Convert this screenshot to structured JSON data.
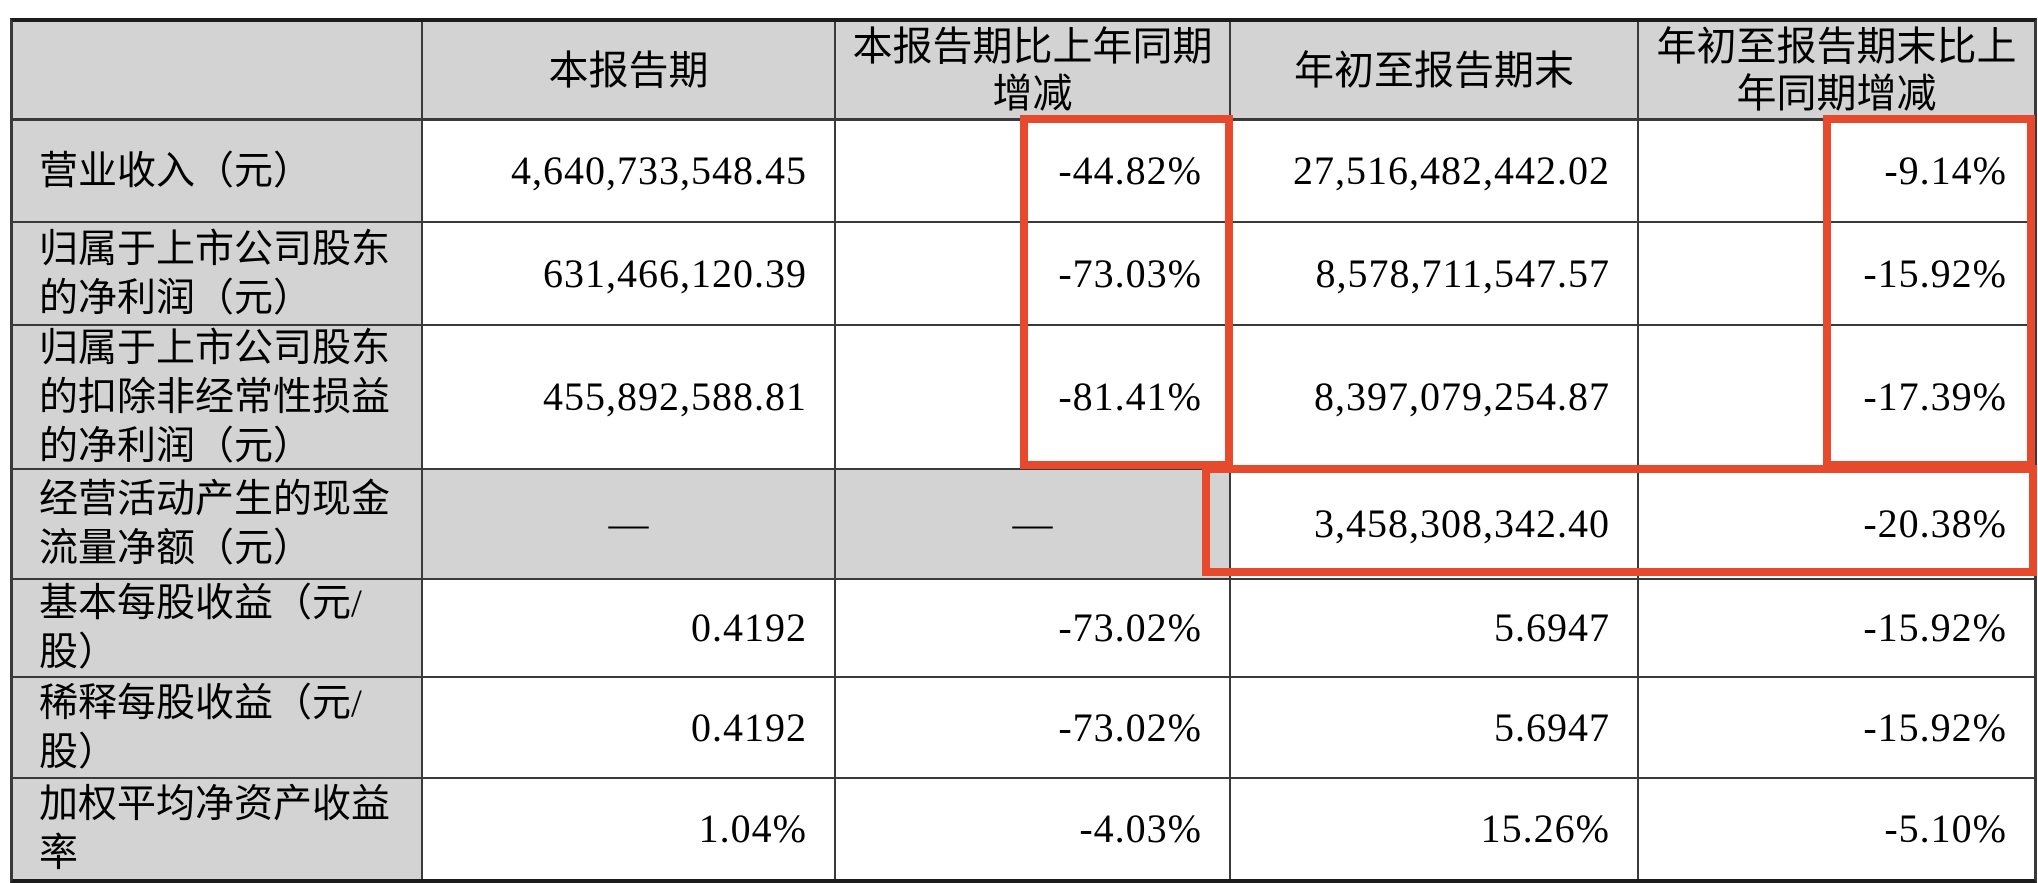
{
  "table": {
    "columns": [
      "",
      "本报告期",
      "本报告期比上年同期增减",
      "年初至报告期末",
      "年初至报告期末比上年同期增减"
    ],
    "rows": [
      {
        "label": "营业收入（元）",
        "values": [
          "4,640,733,548.45",
          "-44.82%",
          "27,516,482,442.02",
          "-9.14%"
        ]
      },
      {
        "label": "归属于上市公司股东的净利润（元）",
        "values": [
          "631,466,120.39",
          "-73.03%",
          "8,578,711,547.57",
          "-15.92%"
        ]
      },
      {
        "label": "归属于上市公司股东的扣除非经常性损益的净利润（元）",
        "values": [
          "455,892,588.81",
          "-81.41%",
          "8,397,079,254.87",
          "-17.39%"
        ]
      },
      {
        "label": "经营活动产生的现金流量净额（元）",
        "values": [
          "—",
          "—",
          "3,458,308,342.40",
          "-20.38%"
        ]
      },
      {
        "label": "基本每股收益（元/股）",
        "values": [
          "0.4192",
          "-73.02%",
          "5.6947",
          "-15.92%"
        ]
      },
      {
        "label": "稀释每股收益（元/股）",
        "values": [
          "0.4192",
          "-73.02%",
          "5.6947",
          "-15.92%"
        ]
      },
      {
        "label": "加权平均净资产收益率",
        "values": [
          "1.04%",
          "-4.03%",
          "15.26%",
          "-5.10%"
        ]
      }
    ],
    "colors": {
      "header_bg": "#d3d3d3",
      "label_bg": "#d3d3d3",
      "border": "#3a3a3a",
      "text": "#000000",
      "highlight": "#e6492c"
    }
  },
  "annotations": {
    "highlight_color": "#e6492c",
    "boxes": [
      {
        "id": "current-period-change-highlight",
        "covers": "本报告期比上年同期增减 -44.82% / -73.03% / -81.41%"
      },
      {
        "id": "ytd-change-highlight",
        "covers": "年初至报告期末比上年同期增减 -9.14% / -15.92% / -17.39%"
      },
      {
        "id": "cash-flow-row-highlight",
        "covers": "经营活动产生的现金流量净额 3,458,308,342.40 / -20.38%"
      }
    ]
  }
}
